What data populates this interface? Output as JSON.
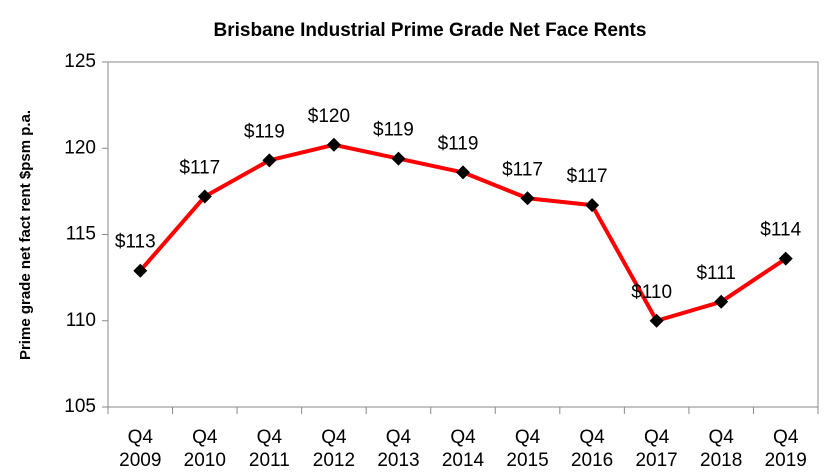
{
  "chart_data": {
    "type": "line",
    "title": "Brisbane Industrial Prime Grade Net Face Rents",
    "y_label": "Prime grade net fact rent $psm p.a.",
    "categories": [
      [
        "Q4",
        "2009"
      ],
      [
        "Q4",
        "2010"
      ],
      [
        "Q4",
        "2011"
      ],
      [
        "Q4",
        "2012"
      ],
      [
        "Q4",
        "2013"
      ],
      [
        "Q4",
        "2014"
      ],
      [
        "Q4",
        "2015"
      ],
      [
        "Q4",
        "2016"
      ],
      [
        "Q4",
        "2017"
      ],
      [
        "Q4",
        "2018"
      ],
      [
        "Q4",
        "2019"
      ]
    ],
    "series": [
      {
        "color": "#ff0000",
        "values": [
          112.9,
          117.2,
          119.3,
          120.2,
          119.4,
          118.6,
          117.1,
          116.7,
          110.0,
          111.1,
          113.6
        ],
        "value_labels": [
          "$113",
          "$117",
          "$119",
          "$120",
          "$119",
          "$119",
          "$117",
          "$117",
          "$110",
          "$111",
          "$114"
        ]
      }
    ],
    "marker_color": "#000000",
    "ylim": [
      105,
      125
    ],
    "yticks": [
      105,
      110,
      115,
      120,
      125
    ],
    "grid": false
  }
}
